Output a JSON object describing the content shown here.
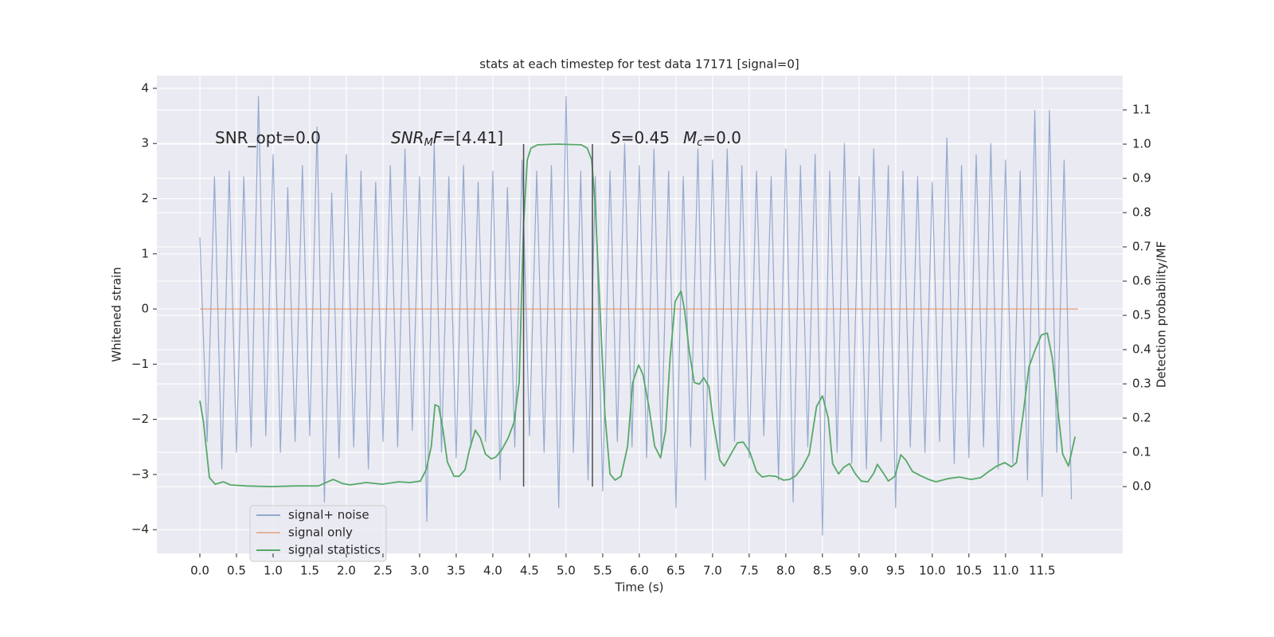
{
  "chart_data": {
    "type": "line",
    "title": "stats at each timestep for test data 17171 [signal=0]",
    "xlabel": "Time (s)",
    "ylabel": "Whitened strain",
    "y2label": "Detection probability/MF",
    "xlim": [
      -0.587,
      12.6
    ],
    "ylim": [
      -4.43,
      4.23
    ],
    "y2lim": [
      -0.195,
      1.2
    ],
    "xticks": [
      {
        "value": 0,
        "label": "0.0"
      },
      0.5,
      {
        "value": 1,
        "label": "1.0"
      },
      1.5,
      {
        "value": 2,
        "label": "2.0"
      },
      2.5,
      {
        "value": 3,
        "label": "3.0"
      },
      3.5,
      {
        "value": 4,
        "label": "4.0"
      },
      4.5,
      {
        "value": 5,
        "label": "5.0"
      },
      5.5,
      {
        "value": 6,
        "label": "6.0"
      },
      6.5,
      {
        "value": 7,
        "label": "7.0"
      },
      7.5,
      {
        "value": 8,
        "label": "8.0"
      },
      8.5,
      {
        "value": 9,
        "label": "9.0"
      },
      9.5,
      {
        "value": 10,
        "label": "10.0"
      },
      10.5,
      {
        "value": 11,
        "label": "11.0"
      },
      11.5
    ],
    "yticks": [
      {
        "value": -4,
        "label": "−4"
      },
      {
        "value": -3,
        "label": "−3"
      },
      {
        "value": -2,
        "label": "−2"
      },
      {
        "value": -1,
        "label": "−1"
      },
      0,
      1,
      2,
      3,
      4
    ],
    "y2ticks": [
      {
        "value": 0,
        "label": "0.0"
      },
      0.1,
      0.2,
      0.3,
      0.4,
      0.5,
      0.6,
      0.7,
      0.8,
      0.9,
      {
        "value": 1,
        "label": "1.0"
      },
      1.1
    ],
    "grid": true,
    "legend": "lower left",
    "series": [
      {
        "name": "signal+ noise",
        "color": "#4c72b0",
        "opacity": 0.55,
        "x": [
          0,
          0.1,
          0.2,
          0.3,
          0.4,
          0.5,
          0.6,
          0.7,
          0.8,
          0.9,
          1,
          1.1,
          1.2,
          1.3,
          1.4,
          1.5,
          1.6,
          1.7,
          1.8,
          1.9,
          2,
          2.1,
          2.2,
          2.3,
          2.4,
          2.5,
          2.6,
          2.7,
          2.8,
          2.9,
          3,
          3.1,
          3.2,
          3.3,
          3.4,
          3.5,
          3.6,
          3.7,
          3.8,
          3.9,
          4,
          4.1,
          4.2,
          4.3,
          4.4,
          4.5,
          4.6,
          4.7,
          4.8,
          4.9,
          5,
          5.1,
          5.2,
          5.3,
          5.4,
          5.5,
          5.6,
          5.7,
          5.8,
          5.9,
          6,
          6.1,
          6.2,
          6.3,
          6.4,
          6.5,
          6.6,
          6.7,
          6.8,
          6.9,
          7,
          7.1,
          7.2,
          7.3,
          7.4,
          7.5,
          7.6,
          7.7,
          7.8,
          7.9,
          8,
          8.1,
          8.2,
          8.3,
          8.4,
          8.5,
          8.6,
          8.7,
          8.8,
          8.9,
          9,
          9.1,
          9.2,
          9.3,
          9.4,
          9.5,
          9.6,
          9.7,
          9.8,
          9.9,
          10,
          10.1,
          10.2,
          10.3,
          10.4,
          10.5,
          10.6,
          10.7,
          10.8,
          10.9,
          11,
          11.1,
          11.2,
          11.3,
          11.4,
          11.5,
          11.6,
          11.7,
          11.8,
          11.9
        ],
        "values": [
          1.3,
          -2.4,
          2.4,
          -2.9,
          2.5,
          -2.6,
          2.4,
          -2.5,
          3.85,
          -2.3,
          2.8,
          -2.6,
          2.2,
          -2.4,
          2.6,
          -2.3,
          3.3,
          -3.5,
          2.1,
          -2.7,
          2.8,
          -2.5,
          2.5,
          -2.9,
          2.3,
          -2.4,
          2.6,
          -2.5,
          2.9,
          -2.2,
          2.4,
          -3.85,
          3.0,
          -2.6,
          2.4,
          -2.7,
          2.6,
          -2.5,
          2.3,
          -2.4,
          2.5,
          -3.1,
          2.2,
          -2.5,
          2.7,
          -2.3,
          2.5,
          -2.6,
          2.6,
          -3.6,
          3.85,
          -2.6,
          2.5,
          -3.1,
          2.4,
          -3.3,
          2.5,
          -2.4,
          3.0,
          -2.5,
          2.6,
          -2.7,
          2.9,
          -2.6,
          2.5,
          -3.6,
          2.4,
          -2.5,
          2.9,
          -3.1,
          2.7,
          -2.6,
          2.9,
          -2.4,
          2.6,
          -2.7,
          2.5,
          -2.3,
          2.4,
          -3.1,
          2.9,
          -3.5,
          2.6,
          -2.5,
          2.8,
          -4.1,
          2.5,
          -2.6,
          3.0,
          -2.8,
          2.4,
          -2.9,
          2.9,
          -2.4,
          2.6,
          -3.6,
          2.5,
          -2.5,
          2.4,
          -2.6,
          2.3,
          -2.4,
          3.1,
          -2.8,
          2.6,
          -2.7,
          2.8,
          -2.5,
          3.0,
          -2.9,
          2.7,
          -2.8,
          2.5,
          -3.1,
          3.6,
          -3.4,
          3.6,
          -2.6,
          2.7,
          -3.45
        ]
      },
      {
        "name": "signal only",
        "color": "#dd8452",
        "opacity": 0.55,
        "x": [
          0,
          11.99
        ],
        "values": [
          0,
          0
        ]
      },
      {
        "name": "signal statistics",
        "color": "#55a868",
        "opacity": 1,
        "axis": "y2",
        "x": [
          0,
          0.05,
          0.13,
          0.21,
          0.32,
          0.42,
          0.64,
          0.97,
          1.29,
          1.62,
          1.82,
          1.95,
          2.05,
          2.27,
          2.49,
          2.71,
          2.87,
          3.01,
          3.09,
          3.16,
          3.21,
          3.26,
          3.32,
          3.38,
          3.47,
          3.54,
          3.62,
          3.68,
          3.76,
          3.83,
          3.9,
          3.98,
          4.04,
          4.12,
          4.21,
          4.29,
          4.36,
          4.42,
          4.47,
          4.52,
          4.61,
          4.88,
          5.21,
          5.29,
          5.35,
          5.4,
          5.46,
          5.53,
          5.6,
          5.67,
          5.75,
          5.84,
          5.91,
          5.99,
          6.05,
          6.13,
          6.21,
          6.29,
          6.36,
          6.42,
          6.49,
          6.57,
          6.62,
          6.68,
          6.75,
          6.82,
          6.88,
          6.95,
          7.01,
          7.1,
          7.16,
          7.25,
          7.34,
          7.42,
          7.51,
          7.6,
          7.68,
          7.77,
          7.86,
          7.97,
          8.05,
          8.14,
          8.23,
          8.32,
          8.42,
          8.5,
          8.58,
          8.64,
          8.72,
          8.79,
          8.87,
          8.95,
          9.03,
          9.12,
          9.2,
          9.25,
          9.34,
          9.4,
          9.49,
          9.57,
          9.64,
          9.73,
          9.84,
          9.95,
          10.05,
          10.21,
          10.37,
          10.53,
          10.66,
          10.77,
          10.88,
          10.99,
          11.08,
          11.15,
          11.24,
          11.32,
          11.4,
          11.49,
          11.57,
          11.64,
          11.71,
          11.78,
          11.86,
          11.95
        ],
        "values": [
          0.251,
          0.188,
          0.026,
          0.007,
          0.014,
          0.005,
          0.002,
          0,
          0.002,
          0.002,
          0.021,
          0.009,
          0.005,
          0.012,
          0.007,
          0.014,
          0.012,
          0.016,
          0.049,
          0.118,
          0.239,
          0.234,
          0.165,
          0.072,
          0.03,
          0.03,
          0.049,
          0.107,
          0.165,
          0.142,
          0.095,
          0.081,
          0.086,
          0.107,
          0.142,
          0.188,
          0.304,
          0.768,
          0.954,
          0.988,
          0.998,
          1.0,
          0.998,
          0.988,
          0.954,
          0.814,
          0.536,
          0.211,
          0.037,
          0.019,
          0.03,
          0.118,
          0.304,
          0.355,
          0.327,
          0.234,
          0.118,
          0.084,
          0.165,
          0.374,
          0.541,
          0.571,
          0.513,
          0.397,
          0.304,
          0.299,
          0.318,
          0.292,
          0.188,
          0.077,
          0.06,
          0.095,
          0.128,
          0.13,
          0.1,
          0.044,
          0.028,
          0.032,
          0.03,
          0.019,
          0.021,
          0.032,
          0.058,
          0.095,
          0.234,
          0.265,
          0.2,
          0.067,
          0.037,
          0.056,
          0.067,
          0.037,
          0.016,
          0.014,
          0.039,
          0.065,
          0.037,
          0.016,
          0.03,
          0.093,
          0.077,
          0.044,
          0.032,
          0.021,
          0.014,
          0.023,
          0.028,
          0.021,
          0.026,
          0.044,
          0.06,
          0.07,
          0.058,
          0.07,
          0.211,
          0.35,
          0.397,
          0.443,
          0.448,
          0.374,
          0.234,
          0.095,
          0.06,
          0.146
        ]
      }
    ],
    "vlines": {
      "x": [
        4.42,
        5.36
      ],
      "y2": [
        0,
        1
      ],
      "color": "#4d4d4d"
    },
    "annotations": [
      {
        "parts": [
          {
            "text": "SNR_opt=0.0",
            "style": "normal"
          }
        ]
      },
      {
        "parts": [
          {
            "text": "SNR",
            "style": "italic"
          },
          {
            "text": "M",
            "style": "italic-sub"
          },
          {
            "text": "F",
            "style": "italic"
          },
          {
            "text": "=[4.41]",
            "style": "normal"
          }
        ]
      },
      {
        "parts": [
          {
            "text": "S",
            "style": "italic"
          },
          {
            "text": "=0.45",
            "style": "normal"
          }
        ]
      },
      {
        "parts": [
          {
            "text": "M",
            "style": "italic"
          },
          {
            "text": "c",
            "style": "italic-sub"
          },
          {
            "text": "=0.0",
            "style": "normal"
          }
        ]
      }
    ]
  }
}
